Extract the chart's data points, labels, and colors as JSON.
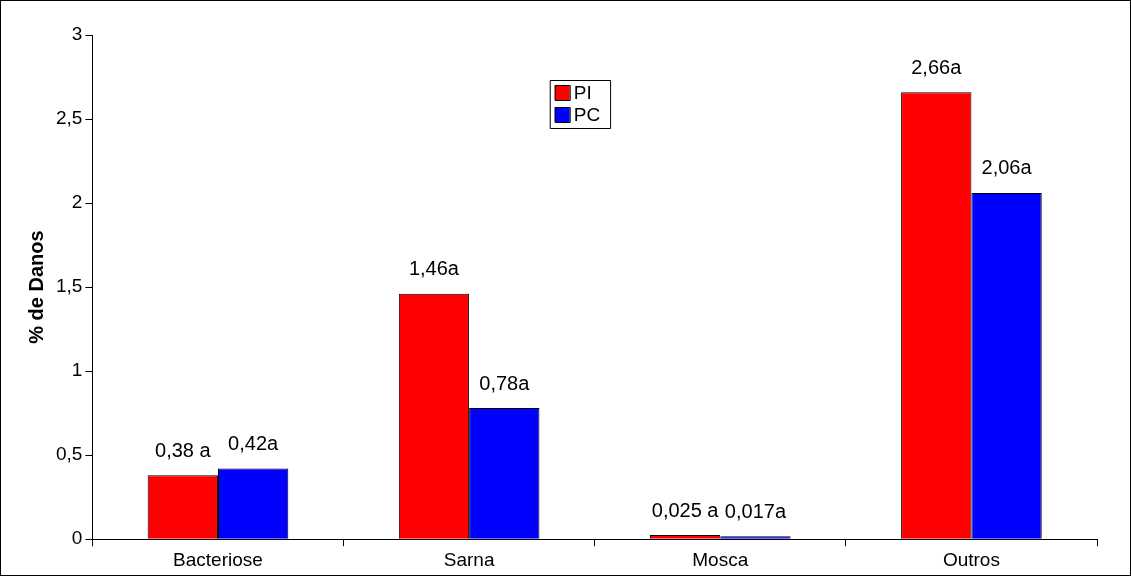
{
  "chart_data": {
    "type": "bar",
    "ylabel": "% de Danos",
    "categories": [
      "Bacteriose",
      "Sarna",
      "Mosca",
      "Outros"
    ],
    "series": [
      {
        "name": "PI",
        "color": "#ff0000",
        "values": [
          0.38,
          1.46,
          0.025,
          2.66
        ],
        "value_labels": [
          "0,38 a",
          "1,46a",
          "0,025 a",
          "2,66a"
        ]
      },
      {
        "name": "PC",
        "color": "#0000ff",
        "values": [
          0.42,
          0.78,
          0.017,
          2.06
        ],
        "value_labels": [
          "0,42a",
          "0,78a",
          "0,017a",
          "2,06a"
        ]
      }
    ],
    "ylim": [
      0,
      3
    ],
    "yticks": [
      0,
      {
        "value": 0.5,
        "label": "0,5"
      },
      1,
      {
        "value": 1.5,
        "label": "1,5"
      },
      2,
      {
        "value": 2.5,
        "label": "2,5"
      },
      3
    ],
    "legend": "top"
  }
}
